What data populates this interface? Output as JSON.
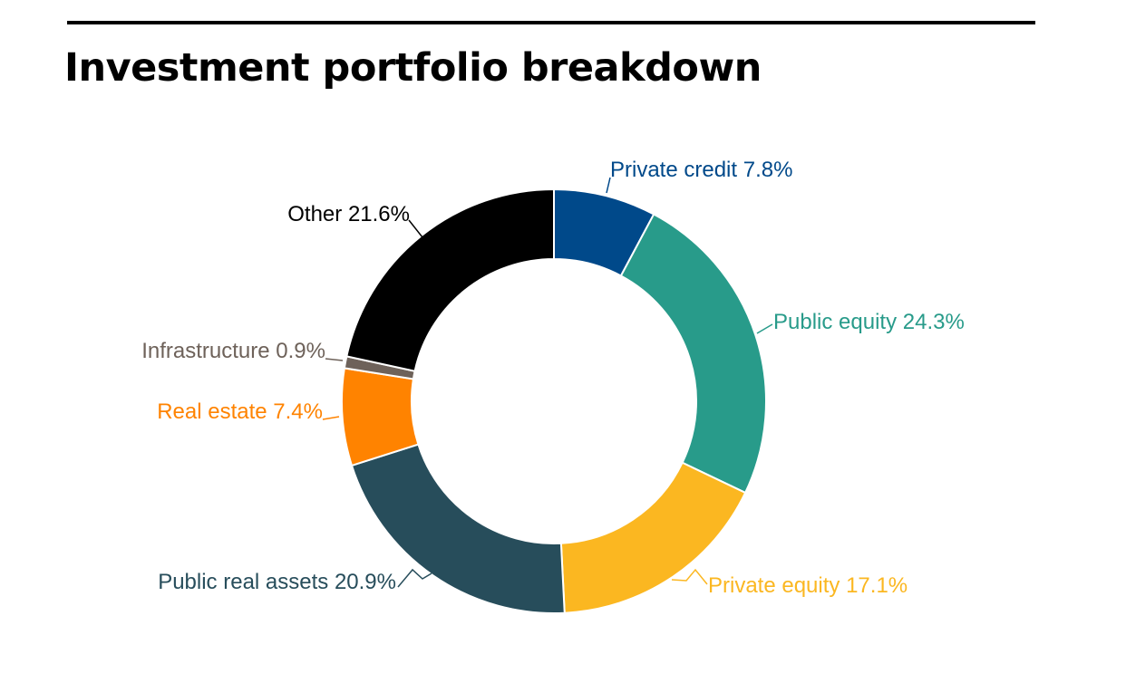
{
  "title": "Investment portfolio breakdown",
  "chart_data": {
    "type": "pie",
    "variant": "donut",
    "start": "top, clockwise",
    "slices": [
      {
        "label": "Private credit",
        "value": 7.8,
        "value_text": "7.8%",
        "color": "#00498a"
      },
      {
        "label": "Public equity",
        "value": 24.3,
        "value_text": "24.3%",
        "color": "#289b8a"
      },
      {
        "label": "Private equity",
        "value": 17.1,
        "value_text": "17.1%",
        "color": "#fbb721"
      },
      {
        "label": "Public real assets",
        "value": 20.9,
        "value_text": "20.9%",
        "color": "#274d5b"
      },
      {
        "label": "Real estate",
        "value": 7.4,
        "value_text": "7.4%",
        "color": "#ff8300"
      },
      {
        "label": "Infrastructure",
        "value": 0.9,
        "value_text": "0.9%",
        "color": "#6e625a"
      },
      {
        "label": "Other",
        "value": 21.6,
        "value_text": "21.6%",
        "color": "#000000"
      }
    ],
    "label_colors": [
      "#00498a",
      "#289b8a",
      "#fbb721",
      "#274d5b",
      "#ff8300",
      "#6e625a",
      "#000000"
    ]
  }
}
